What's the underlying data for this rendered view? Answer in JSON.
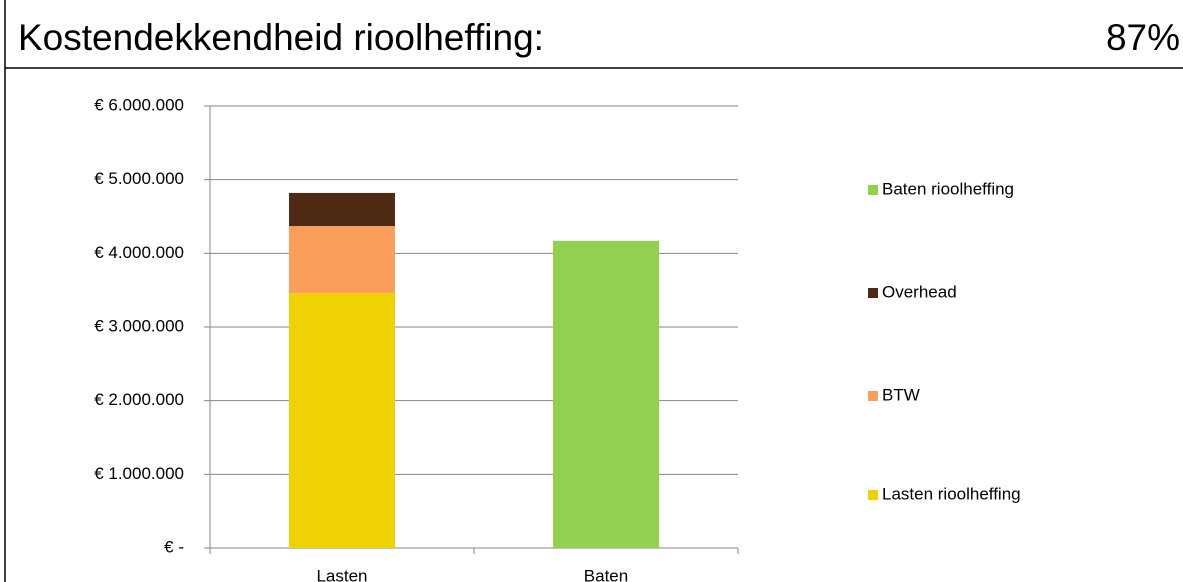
{
  "chart_data": {
    "type": "stacked_bar",
    "title": "Kostendekkendheid rioolheffing:",
    "summary": "87%",
    "categories": [
      "Lasten",
      "Baten"
    ],
    "series": [
      {
        "name": "Lasten rioolheffing",
        "color": "#eed202",
        "values": [
          3460000,
          null
        ]
      },
      {
        "name": "BTW",
        "color": "#fb9d5b",
        "values": [
          910000,
          null
        ]
      },
      {
        "name": "Overhead",
        "color": "#4f2a14",
        "values": [
          450000,
          null
        ]
      },
      {
        "name": "Baten rioolheffing",
        "color": "#92d050",
        "values": [
          null,
          4170000
        ]
      }
    ],
    "ylim": [
      0,
      6000000
    ],
    "yticks": [
      {
        "value": 0,
        "label": "€ -"
      },
      {
        "value": 1000000,
        "label": "€ 1.000.000"
      },
      {
        "value": 2000000,
        "label": "€ 2.000.000"
      },
      {
        "value": 3000000,
        "label": "€ 3.000.000"
      },
      {
        "value": 4000000,
        "label": "€ 4.000.000"
      },
      {
        "value": 5000000,
        "label": "€ 5.000.000"
      },
      {
        "value": 6000000,
        "label": "€ 6.000.000"
      }
    ],
    "grid": true,
    "legend": "right"
  }
}
